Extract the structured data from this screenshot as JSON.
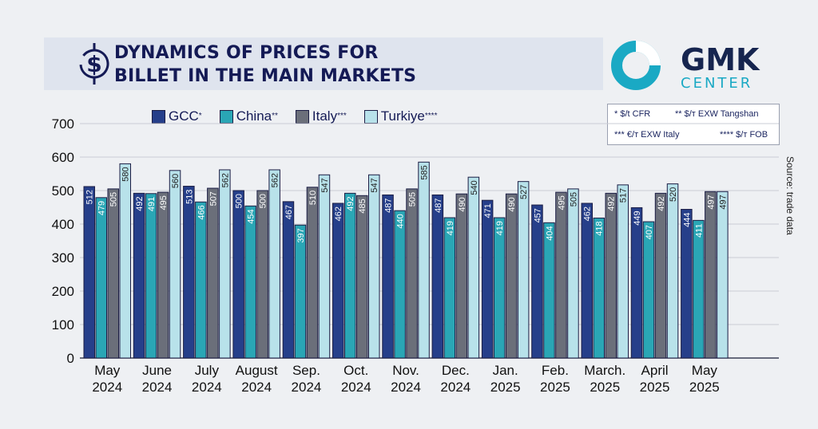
{
  "header": {
    "title_line1": "DYNAMICS OF PRICES FOR",
    "title_line2": "BILLET IN THE MAIN MARKETS"
  },
  "logo": {
    "line1": "GMK",
    "line2": "CENTER"
  },
  "legend": [
    {
      "label": "GCC",
      "sup": "*"
    },
    {
      "label": "China",
      "sup": "**"
    },
    {
      "label": "Italy",
      "sup": "***"
    },
    {
      "label": "Turkiye",
      "sup": "****"
    }
  ],
  "notes": {
    "n1": "* $/t CFR",
    "n2": "** $/т EXW Tangshan",
    "n3": "*** €/т EXW Italy",
    "n4": "**** $/т FOB"
  },
  "source": "Source: trade data",
  "colors": {
    "gcc": "#263f8a",
    "china": "#2aa6b5",
    "italy": "#6b6f7a",
    "turkiye": "#b8e2ea",
    "title": "#141a55",
    "logo_teal": "#1aa9c4"
  },
  "chart_data": {
    "type": "bar",
    "categories": [
      "May 2024",
      "June 2024",
      "July 2024",
      "August 2024",
      "Sep. 2024",
      "Oct. 2024",
      "Nov. 2024",
      "Dec. 2024",
      "Jan. 2025",
      "Feb. 2025",
      "March. 2025",
      "April 2025",
      "May 2025"
    ],
    "category_lines": [
      [
        "May",
        "2024"
      ],
      [
        "June",
        "2024"
      ],
      [
        "July",
        "2024"
      ],
      [
        "August",
        "2024"
      ],
      [
        "Sep.",
        "2024"
      ],
      [
        "Oct.",
        "2024"
      ],
      [
        "Nov.",
        "2024"
      ],
      [
        "Dec.",
        "2024"
      ],
      [
        "Jan.",
        "2025"
      ],
      [
        "Feb.",
        "2025"
      ],
      [
        "March.",
        "2025"
      ],
      [
        "April",
        "2025"
      ],
      [
        "May",
        "2025"
      ]
    ],
    "series": [
      {
        "name": "GCC",
        "values": [
          512,
          492,
          513,
          500,
          467,
          462,
          487,
          487,
          471,
          457,
          462,
          449,
          444
        ]
      },
      {
        "name": "China",
        "values": [
          479,
          491,
          466,
          454,
          397,
          492,
          440,
          419,
          419,
          404,
          418,
          407,
          411
        ]
      },
      {
        "name": "Italy",
        "values": [
          505,
          495,
          507,
          500,
          510,
          485,
          505,
          490,
          490,
          495,
          492,
          492,
          497
        ]
      },
      {
        "name": "Turkiye",
        "values": [
          580,
          560,
          562,
          562,
          547,
          547,
          585,
          540,
          527,
          505,
          517,
          520,
          497
        ]
      }
    ],
    "yticks": [
      0,
      100,
      200,
      300,
      400,
      500,
      600,
      700
    ],
    "ylim": [
      0,
      700
    ],
    "grid": true,
    "legend_position": "top"
  }
}
